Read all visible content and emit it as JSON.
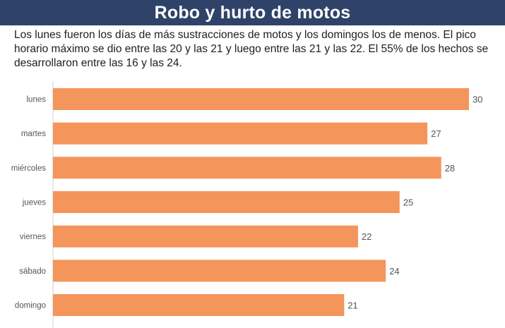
{
  "header": {
    "title": "Robo y hurto de motos"
  },
  "description": "Los lunes fueron los días de más sustracciones de motos y los domingos los de menos. El pico horario máximo se dio entre las 20 y las 21 y luego entre las 21 y las 22. El 55% de los hechos se desarrollaron entre las 16 y las 24.",
  "colors": {
    "header_background": "#2f4369",
    "bar": "#f4955b",
    "axis": "#cfcfcf"
  },
  "chart_data": {
    "type": "bar",
    "orientation": "horizontal",
    "categories": [
      "lunes",
      "martes",
      "miércoles",
      "jueves",
      "viernes",
      "sábado",
      "domingo"
    ],
    "values": [
      30,
      27,
      28,
      25,
      22,
      24,
      21
    ],
    "xlim": [
      0,
      30
    ],
    "grid": false,
    "legend": "none",
    "data_labels": true
  }
}
